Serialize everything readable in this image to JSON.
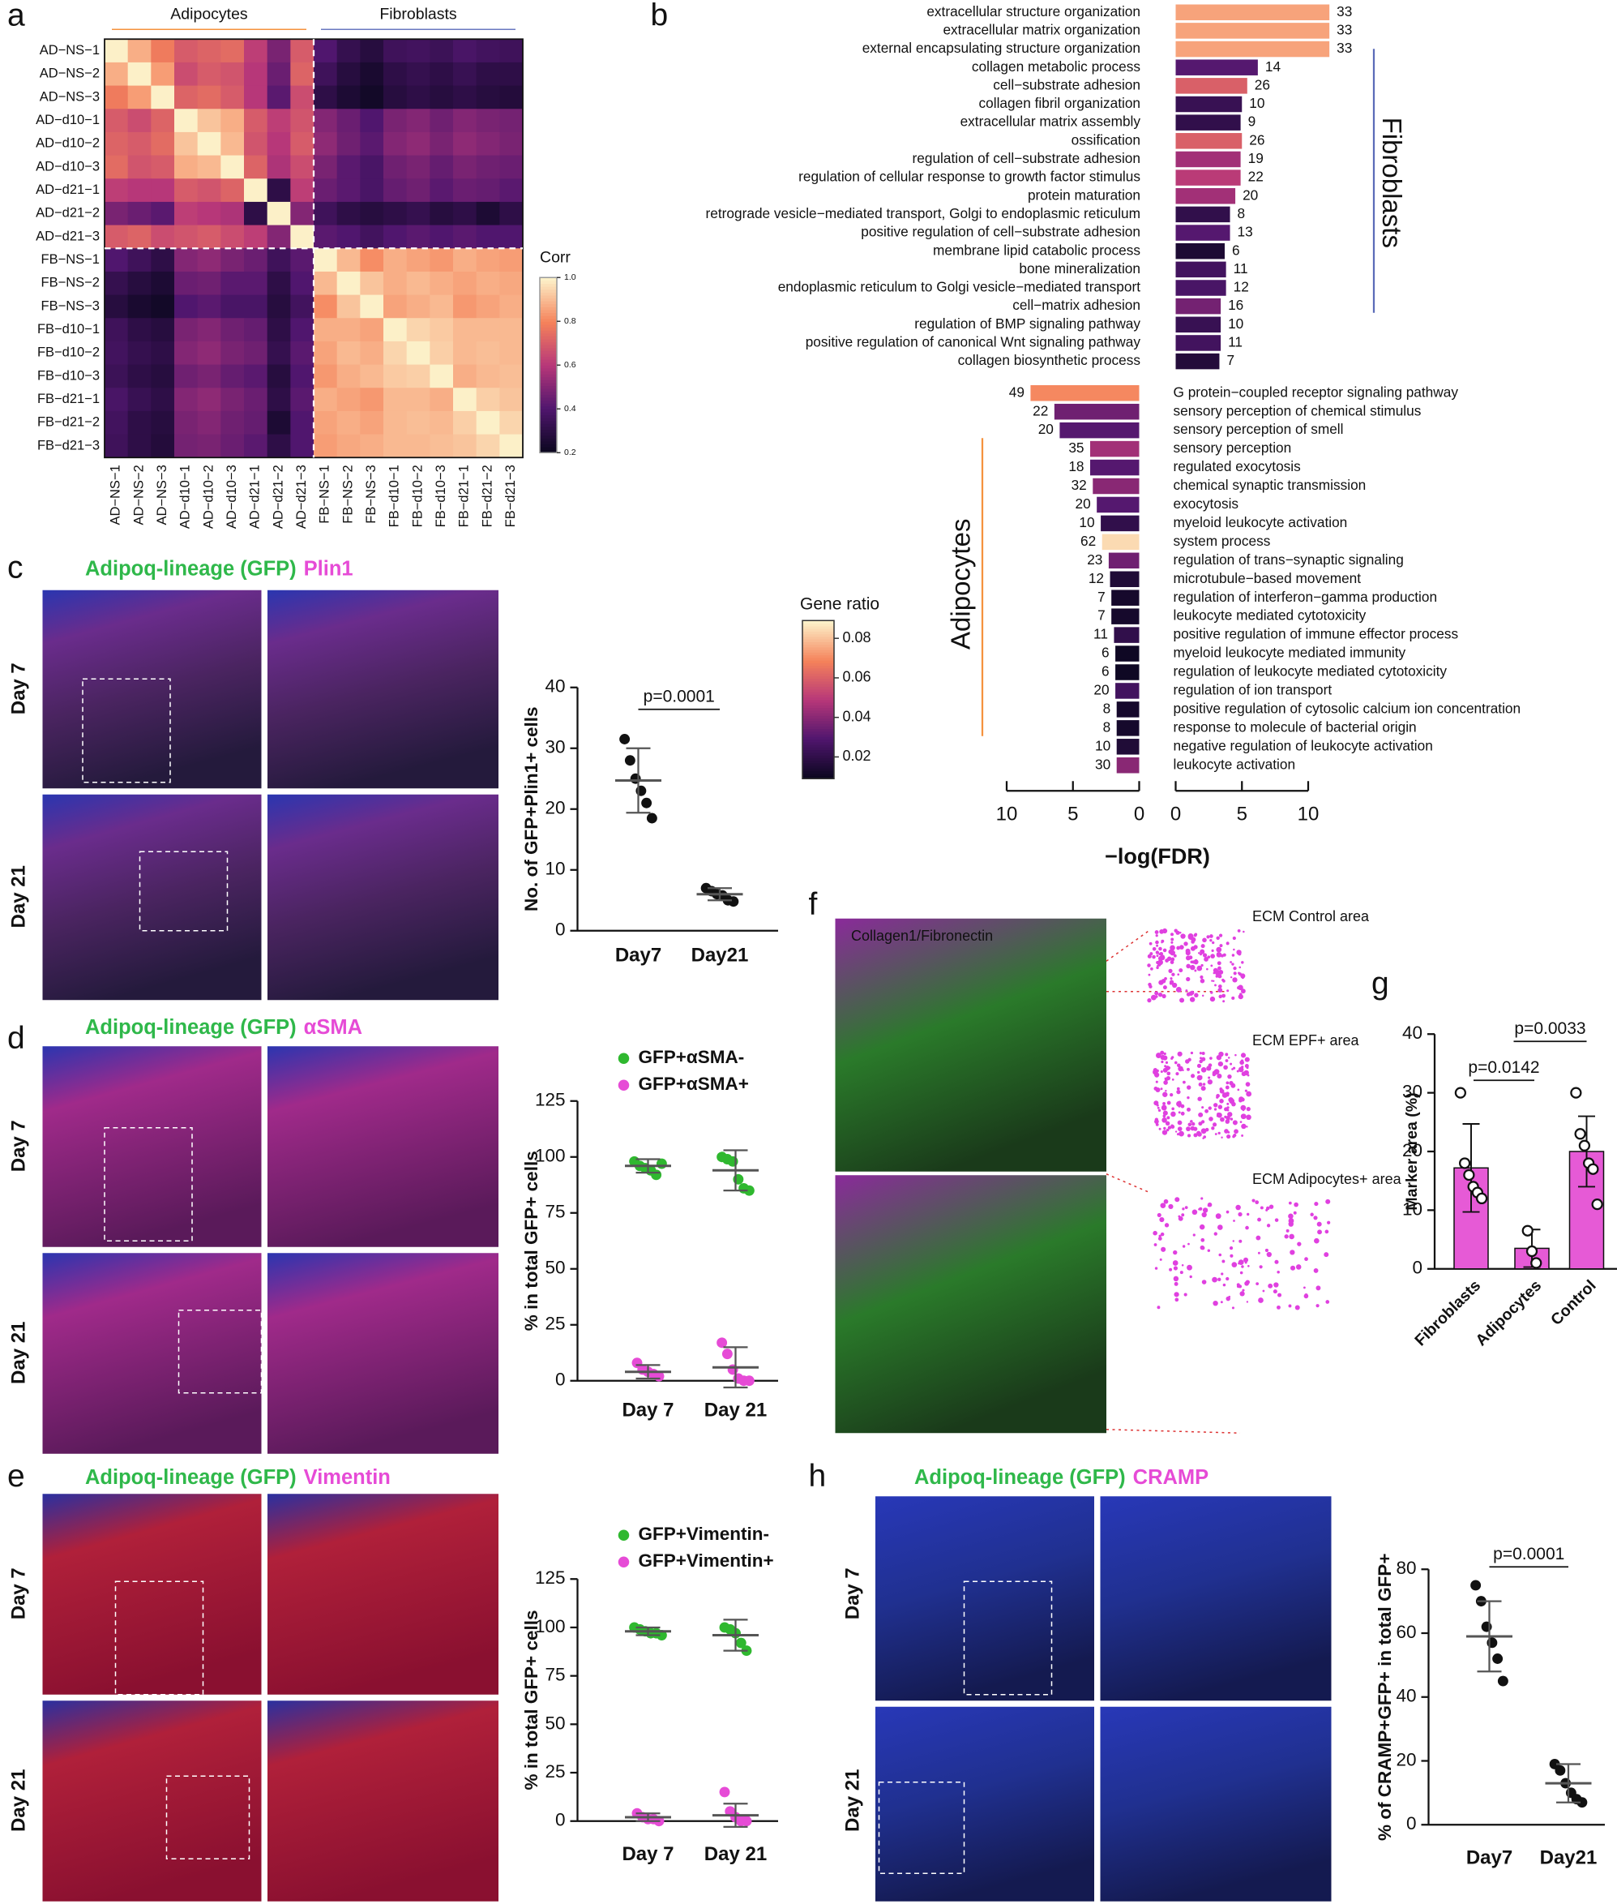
{
  "figure": {
    "panel_letters": [
      "a",
      "b",
      "c",
      "d",
      "e",
      "f",
      "g",
      "h"
    ]
  },
  "micrographs": {
    "c": {
      "title": [
        "Adipoq-lineage (GFP)",
        "Plin1"
      ],
      "rows": [
        "Day 7",
        "Day 21"
      ]
    },
    "d": {
      "title": [
        "Adipoq-lineage (GFP)",
        "αSMA"
      ],
      "rows": [
        "Day 7",
        "Day 21"
      ]
    },
    "e": {
      "title": [
        "Adipoq-lineage (GFP)",
        "Vimentin"
      ],
      "rows": [
        "Day 7",
        "Day 21"
      ]
    },
    "h": {
      "title": [
        "Adipoq-lineage (GFP)",
        "CRAMP"
      ],
      "rows": [
        "Day 7",
        "Day 21"
      ]
    },
    "f": {
      "title": "Collagen1/Fibronectin",
      "areas": [
        "ECM Control area",
        "ECM EPF+ area",
        "ECM Adipocytes+ area"
      ]
    }
  },
  "chart_data": [
    {
      "type": "heatmap",
      "legend_title": "Corr",
      "groups": [
        "Adipocytes",
        "Fibroblasts"
      ],
      "labels": [
        "AD−NS−1",
        "AD−NS−2",
        "AD−NS−3",
        "AD−d10−1",
        "AD−d10−2",
        "AD−d10−3",
        "AD−d21−1",
        "AD−d21−2",
        "AD−d21−3",
        "FB−NS−1",
        "FB−NS−2",
        "FB−NS−3",
        "FB−d10−1",
        "FB−d10−2",
        "FB−d10−3",
        "FB−d21−1",
        "FB−d21−2",
        "FB−d21−3"
      ],
      "zlim": [
        0.2,
        1
      ],
      "zticks": [
        0.2,
        0.4,
        0.6,
        0.8,
        {
          "value": 1,
          "label": "1.0"
        }
      ],
      "values": [
        [
          1,
          0.88,
          0.78,
          0.7,
          0.72,
          0.74,
          0.62,
          0.48,
          0.7,
          0.4,
          0.32,
          0.28,
          0.35,
          0.36,
          0.34,
          0.38,
          0.36,
          0.35
        ],
        [
          0.88,
          1,
          0.85,
          0.66,
          0.7,
          0.68,
          0.6,
          0.45,
          0.72,
          0.35,
          0.28,
          0.24,
          0.3,
          0.32,
          0.3,
          0.33,
          0.3,
          0.3
        ],
        [
          0.78,
          0.85,
          1,
          0.72,
          0.74,
          0.7,
          0.6,
          0.42,
          0.66,
          0.3,
          0.25,
          0.22,
          0.28,
          0.3,
          0.28,
          0.3,
          0.28,
          0.27
        ],
        [
          0.7,
          0.66,
          0.72,
          1,
          0.92,
          0.88,
          0.7,
          0.62,
          0.68,
          0.5,
          0.45,
          0.4,
          0.48,
          0.5,
          0.46,
          0.5,
          0.48,
          0.47
        ],
        [
          0.72,
          0.7,
          0.74,
          0.92,
          1,
          0.9,
          0.68,
          0.6,
          0.7,
          0.52,
          0.46,
          0.42,
          0.5,
          0.52,
          0.48,
          0.52,
          0.5,
          0.48
        ],
        [
          0.74,
          0.68,
          0.7,
          0.88,
          0.9,
          1,
          0.72,
          0.58,
          0.66,
          0.48,
          0.42,
          0.38,
          0.46,
          0.48,
          0.44,
          0.48,
          0.46,
          0.45
        ],
        [
          0.62,
          0.6,
          0.6,
          0.7,
          0.68,
          0.72,
          1,
          0.3,
          0.62,
          0.45,
          0.42,
          0.38,
          0.44,
          0.46,
          0.42,
          0.45,
          0.44,
          0.42
        ],
        [
          0.48,
          0.45,
          0.42,
          0.62,
          0.6,
          0.58,
          0.3,
          1,
          0.5,
          0.35,
          0.3,
          0.28,
          0.3,
          0.32,
          0.28,
          0.3,
          0.25,
          0.3
        ],
        [
          0.7,
          0.72,
          0.66,
          0.68,
          0.7,
          0.66,
          0.62,
          0.5,
          1,
          0.42,
          0.4,
          0.36,
          0.4,
          0.42,
          0.4,
          0.42,
          0.4,
          0.4
        ],
        [
          0.4,
          0.35,
          0.3,
          0.5,
          0.52,
          0.48,
          0.45,
          0.35,
          0.42,
          1,
          0.9,
          0.82,
          0.88,
          0.86,
          0.84,
          0.88,
          0.86,
          0.85
        ],
        [
          0.32,
          0.28,
          0.25,
          0.45,
          0.46,
          0.42,
          0.42,
          0.3,
          0.4,
          0.9,
          1,
          0.92,
          0.88,
          0.9,
          0.88,
          0.86,
          0.88,
          0.87
        ],
        [
          0.28,
          0.24,
          0.22,
          0.4,
          0.42,
          0.38,
          0.38,
          0.28,
          0.36,
          0.82,
          0.92,
          1,
          0.86,
          0.88,
          0.9,
          0.84,
          0.86,
          0.88
        ],
        [
          0.35,
          0.3,
          0.28,
          0.48,
          0.5,
          0.46,
          0.44,
          0.3,
          0.4,
          0.88,
          0.88,
          0.86,
          1,
          0.95,
          0.93,
          0.9,
          0.9,
          0.9
        ],
        [
          0.36,
          0.32,
          0.3,
          0.5,
          0.52,
          0.48,
          0.46,
          0.32,
          0.42,
          0.86,
          0.9,
          0.88,
          0.95,
          1,
          0.94,
          0.9,
          0.91,
          0.9
        ],
        [
          0.34,
          0.3,
          0.28,
          0.46,
          0.48,
          0.44,
          0.42,
          0.28,
          0.4,
          0.84,
          0.88,
          0.9,
          0.93,
          0.94,
          1,
          0.88,
          0.9,
          0.91
        ],
        [
          0.38,
          0.33,
          0.3,
          0.5,
          0.52,
          0.48,
          0.45,
          0.3,
          0.42,
          0.88,
          0.86,
          0.84,
          0.9,
          0.9,
          0.88,
          1,
          0.94,
          0.92
        ],
        [
          0.36,
          0.3,
          0.28,
          0.48,
          0.5,
          0.46,
          0.44,
          0.25,
          0.4,
          0.86,
          0.88,
          0.86,
          0.9,
          0.91,
          0.9,
          0.94,
          1,
          0.95
        ],
        [
          0.35,
          0.3,
          0.27,
          0.47,
          0.48,
          0.45,
          0.42,
          0.3,
          0.4,
          0.85,
          0.87,
          0.88,
          0.9,
          0.9,
          0.91,
          0.92,
          0.95,
          1
        ]
      ]
    },
    {
      "type": "go-bar",
      "x_label": "−log(FDR)",
      "color_legend_title": "Gene ratio",
      "color_lim": [
        0.009,
        0.089
      ],
      "color_ticks": [
        0.02,
        0.04,
        0.06,
        0.08
      ],
      "xlim": [
        0,
        10
      ],
      "xticks": [
        0,
        5,
        10
      ],
      "groups": [
        {
          "name": "Fibroblasts",
          "color": "#5b6bb8",
          "terms": [
            "extracellular structure organization",
            "extracellular matrix organization",
            "external encapsulating structure organization",
            "collagen metabolic process",
            "cell−substrate adhesion",
            "collagen fibril organization",
            "extracellular matrix assembly",
            "ossification",
            "regulation of cell−substrate adhesion",
            "regulation of cellular response to growth factor stimulus",
            "protein maturation",
            "retrograde vesicle−mediated transport, Golgi to endoplasmic reticulum",
            "positive regulation of cell−substrate adhesion",
            "membrane lipid catabolic process",
            "bone mineralization",
            "endoplasmic reticulum to Golgi vesicle−mediated transport",
            "cell−matrix adhesion",
            "regulation of BMP signaling pathway",
            "positive regulation of canonical Wnt signaling pathway",
            "collagen biosynthetic process"
          ],
          "values": [
            11.6,
            11.6,
            11.6,
            6.2,
            5.4,
            5.0,
            4.9,
            5.0,
            4.9,
            4.9,
            4.5,
            4.1,
            4.1,
            3.7,
            3.8,
            3.8,
            3.4,
            3.4,
            3.4,
            3.3
          ],
          "counts": [
            33,
            33,
            33,
            14,
            26,
            10,
            9,
            26,
            19,
            22,
            20,
            8,
            13,
            6,
            11,
            12,
            16,
            10,
            11,
            7
          ],
          "gene_ratio": [
            0.075,
            0.075,
            0.075,
            0.03,
            0.06,
            0.022,
            0.02,
            0.06,
            0.045,
            0.05,
            0.045,
            0.02,
            0.03,
            0.014,
            0.025,
            0.027,
            0.036,
            0.022,
            0.025,
            0.016
          ]
        },
        {
          "name": "Adipocytes",
          "color": "#f5923e",
          "terms": [
            "G protein−coupled receptor signaling pathway",
            "sensory perception of chemical stimulus",
            "sensory perception of smell",
            "sensory perception",
            "regulated exocytosis",
            "chemical synaptic transmission",
            "exocytosis",
            "myeloid leukocyte activation",
            "system process",
            "regulation of trans−synaptic signaling",
            "microtubule−based movement",
            "regulation of interferon−gamma production",
            "leukocyte mediated cytotoxicity",
            "positive regulation of immune effector process",
            "myeloid leukocyte mediated immunity",
            "regulation of leukocyte mediated cytotoxicity",
            "regulation of ion transport",
            "positive regulation of cytosolic calcium ion concentration",
            "response to molecule of bacterial origin",
            "negative regulation of leukocyte activation",
            "leukocyte activation"
          ],
          "values": [
            8.2,
            6.4,
            6.0,
            3.7,
            3.7,
            3.5,
            3.2,
            2.9,
            2.8,
            2.3,
            2.2,
            2.1,
            2.1,
            1.9,
            1.8,
            1.8,
            1.8,
            1.7,
            1.7,
            1.7,
            1.7
          ],
          "counts": [
            49,
            22,
            20,
            35,
            18,
            32,
            20,
            10,
            62,
            23,
            12,
            7,
            7,
            11,
            6,
            6,
            20,
            8,
            8,
            10,
            30
          ],
          "gene_ratio": [
            0.07,
            0.035,
            0.03,
            0.045,
            0.03,
            0.04,
            0.03,
            0.02,
            0.085,
            0.035,
            0.015,
            0.012,
            0.012,
            0.02,
            0.01,
            0.01,
            0.025,
            0.012,
            0.012,
            0.015,
            0.04
          ]
        }
      ]
    },
    {
      "type": "dot",
      "y_label": "No. of GFP+Plin1+ cells",
      "categories": [
        "Day7",
        "Day21"
      ],
      "ylim": [
        0,
        40
      ],
      "yticks": [
        0,
        10,
        20,
        30,
        40
      ],
      "annotation": "p=0.0001",
      "series": [
        {
          "color": "#111111",
          "values": [
            [
              31.5,
              28,
              25,
              23,
              21,
              18.5
            ],
            [
              7,
              6.5,
              6,
              5.8,
              5,
              4.8
            ]
          ],
          "means": [
            24.7,
            6
          ],
          "sd": [
            5.3,
            1
          ]
        }
      ]
    },
    {
      "type": "dot",
      "y_label": "% in total GFP+ cells",
      "categories": [
        "Day 7",
        "Day 21"
      ],
      "ylim": [
        0,
        125
      ],
      "yticks": [
        0,
        25,
        50,
        75,
        100,
        125
      ],
      "series": [
        {
          "name": "GFP+αSMA-",
          "color": "#2fb82f",
          "values": [
            [
              98,
              96,
              95,
              94,
              92,
              97
            ],
            [
              100,
              99,
              98,
              90,
              86,
              85
            ]
          ],
          "means": [
            96,
            94
          ],
          "sd": [
            3,
            9
          ]
        },
        {
          "name": "GFP+αSMA+",
          "color": "#e64bd6",
          "values": [
            [
              8,
              5,
              4,
              3,
              2
            ],
            [
              17,
              12,
              5,
              1,
              0,
              0
            ]
          ],
          "means": [
            4,
            6
          ],
          "sd": [
            3,
            9
          ]
        }
      ]
    },
    {
      "type": "dot",
      "y_label": "% in total GFP+ cells",
      "categories": [
        "Day 7",
        "Day 21"
      ],
      "ylim": [
        0,
        125
      ],
      "yticks": [
        0,
        25,
        50,
        75,
        100,
        125
      ],
      "series": [
        {
          "name": "GFP+Vimentin-",
          "color": "#2fb82f",
          "values": [
            [
              100,
              99,
              98,
              97,
              97,
              96
            ],
            [
              100,
              99,
              97,
              92,
              88
            ]
          ],
          "means": [
            98,
            96
          ],
          "sd": [
            2,
            8
          ]
        },
        {
          "name": "GFP+Vimentin+",
          "color": "#e64bd6",
          "values": [
            [
              4,
              2,
              1,
              1,
              0
            ],
            [
              15,
              5,
              2,
              0,
              0
            ]
          ],
          "means": [
            2,
            3
          ],
          "sd": [
            2,
            6
          ]
        }
      ]
    },
    {
      "type": "bar",
      "y_label": "Marker area (%)",
      "categories": [
        "Fibroblasts",
        "Adipocytes",
        "Control"
      ],
      "values": [
        17.2,
        3.5,
        20
      ],
      "errors": [
        7.5,
        3.2,
        6
      ],
      "points": [
        [
          30,
          18,
          16,
          14,
          13,
          12
        ],
        [
          6.5,
          3,
          1
        ],
        [
          30,
          23,
          21,
          18,
          17,
          11
        ]
      ],
      "color": "#e65ad6",
      "ylim": [
        0,
        40
      ],
      "yticks": [
        0,
        10,
        20,
        30,
        40
      ],
      "annotations": [
        "p=0.0142",
        "p=0.0033"
      ]
    },
    {
      "type": "dot",
      "y_label": "% of CRAMP+GFP+ in total GFP+",
      "categories": [
        "Day7",
        "Day21"
      ],
      "ylim": [
        0,
        80
      ],
      "yticks": [
        0,
        20,
        40,
        60,
        80
      ],
      "annotation": "p=0.0001",
      "series": [
        {
          "color": "#111111",
          "values": [
            [
              75,
              70,
              62,
              57,
              52,
              45
            ],
            [
              19,
              17,
              13,
              10,
              8,
              7
            ]
          ],
          "means": [
            59,
            13
          ],
          "sd": [
            11,
            6
          ]
        }
      ]
    }
  ]
}
